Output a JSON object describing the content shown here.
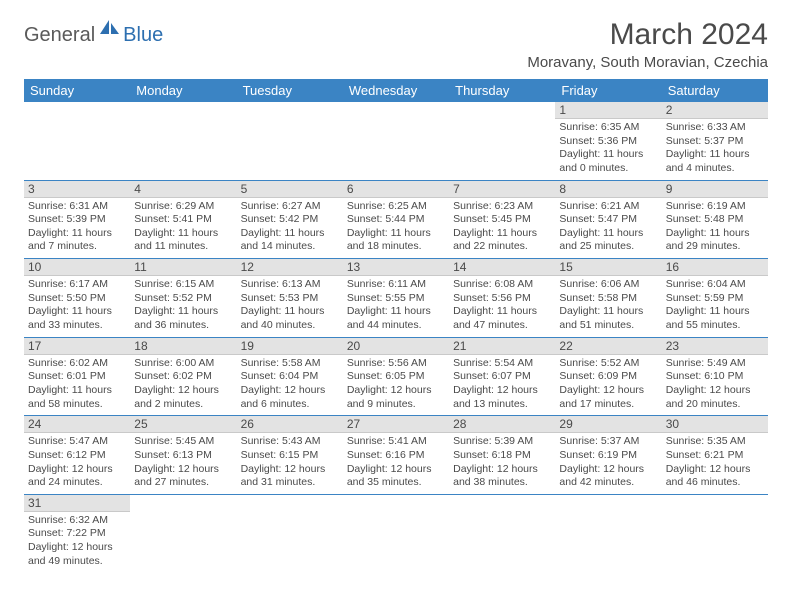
{
  "logo": {
    "general": "General",
    "blue": "Blue"
  },
  "title": "March 2024",
  "location": "Moravany, South Moravian, Czechia",
  "weekdays": [
    "Sunday",
    "Monday",
    "Tuesday",
    "Wednesday",
    "Thursday",
    "Friday",
    "Saturday"
  ],
  "colors": {
    "header_bg": "#3b84c4",
    "header_text": "#ffffff",
    "daynum_bg": "#e3e3e3",
    "border": "#3b84c4",
    "text": "#4a4a4a",
    "logo_general": "#5a5a5a",
    "logo_blue": "#2d6fb0"
  },
  "days": {
    "1": {
      "sunrise": "6:35 AM",
      "sunset": "5:36 PM",
      "daylight": "11 hours and 0 minutes."
    },
    "2": {
      "sunrise": "6:33 AM",
      "sunset": "5:37 PM",
      "daylight": "11 hours and 4 minutes."
    },
    "3": {
      "sunrise": "6:31 AM",
      "sunset": "5:39 PM",
      "daylight": "11 hours and 7 minutes."
    },
    "4": {
      "sunrise": "6:29 AM",
      "sunset": "5:41 PM",
      "daylight": "11 hours and 11 minutes."
    },
    "5": {
      "sunrise": "6:27 AM",
      "sunset": "5:42 PM",
      "daylight": "11 hours and 14 minutes."
    },
    "6": {
      "sunrise": "6:25 AM",
      "sunset": "5:44 PM",
      "daylight": "11 hours and 18 minutes."
    },
    "7": {
      "sunrise": "6:23 AM",
      "sunset": "5:45 PM",
      "daylight": "11 hours and 22 minutes."
    },
    "8": {
      "sunrise": "6:21 AM",
      "sunset": "5:47 PM",
      "daylight": "11 hours and 25 minutes."
    },
    "9": {
      "sunrise": "6:19 AM",
      "sunset": "5:48 PM",
      "daylight": "11 hours and 29 minutes."
    },
    "10": {
      "sunrise": "6:17 AM",
      "sunset": "5:50 PM",
      "daylight": "11 hours and 33 minutes."
    },
    "11": {
      "sunrise": "6:15 AM",
      "sunset": "5:52 PM",
      "daylight": "11 hours and 36 minutes."
    },
    "12": {
      "sunrise": "6:13 AM",
      "sunset": "5:53 PM",
      "daylight": "11 hours and 40 minutes."
    },
    "13": {
      "sunrise": "6:11 AM",
      "sunset": "5:55 PM",
      "daylight": "11 hours and 44 minutes."
    },
    "14": {
      "sunrise": "6:08 AM",
      "sunset": "5:56 PM",
      "daylight": "11 hours and 47 minutes."
    },
    "15": {
      "sunrise": "6:06 AM",
      "sunset": "5:58 PM",
      "daylight": "11 hours and 51 minutes."
    },
    "16": {
      "sunrise": "6:04 AM",
      "sunset": "5:59 PM",
      "daylight": "11 hours and 55 minutes."
    },
    "17": {
      "sunrise": "6:02 AM",
      "sunset": "6:01 PM",
      "daylight": "11 hours and 58 minutes."
    },
    "18": {
      "sunrise": "6:00 AM",
      "sunset": "6:02 PM",
      "daylight": "12 hours and 2 minutes."
    },
    "19": {
      "sunrise": "5:58 AM",
      "sunset": "6:04 PM",
      "daylight": "12 hours and 6 minutes."
    },
    "20": {
      "sunrise": "5:56 AM",
      "sunset": "6:05 PM",
      "daylight": "12 hours and 9 minutes."
    },
    "21": {
      "sunrise": "5:54 AM",
      "sunset": "6:07 PM",
      "daylight": "12 hours and 13 minutes."
    },
    "22": {
      "sunrise": "5:52 AM",
      "sunset": "6:09 PM",
      "daylight": "12 hours and 17 minutes."
    },
    "23": {
      "sunrise": "5:49 AM",
      "sunset": "6:10 PM",
      "daylight": "12 hours and 20 minutes."
    },
    "24": {
      "sunrise": "5:47 AM",
      "sunset": "6:12 PM",
      "daylight": "12 hours and 24 minutes."
    },
    "25": {
      "sunrise": "5:45 AM",
      "sunset": "6:13 PM",
      "daylight": "12 hours and 27 minutes."
    },
    "26": {
      "sunrise": "5:43 AM",
      "sunset": "6:15 PM",
      "daylight": "12 hours and 31 minutes."
    },
    "27": {
      "sunrise": "5:41 AM",
      "sunset": "6:16 PM",
      "daylight": "12 hours and 35 minutes."
    },
    "28": {
      "sunrise": "5:39 AM",
      "sunset": "6:18 PM",
      "daylight": "12 hours and 38 minutes."
    },
    "29": {
      "sunrise": "5:37 AM",
      "sunset": "6:19 PM",
      "daylight": "12 hours and 42 minutes."
    },
    "30": {
      "sunrise": "5:35 AM",
      "sunset": "6:21 PM",
      "daylight": "12 hours and 46 minutes."
    },
    "31": {
      "sunrise": "6:32 AM",
      "sunset": "7:22 PM",
      "daylight": "12 hours and 49 minutes."
    }
  },
  "labels": {
    "sunrise": "Sunrise: ",
    "sunset": "Sunset: ",
    "daylight": "Daylight: "
  },
  "layout": {
    "first_weekday_index": 5,
    "num_days": 31,
    "cols": 7
  }
}
